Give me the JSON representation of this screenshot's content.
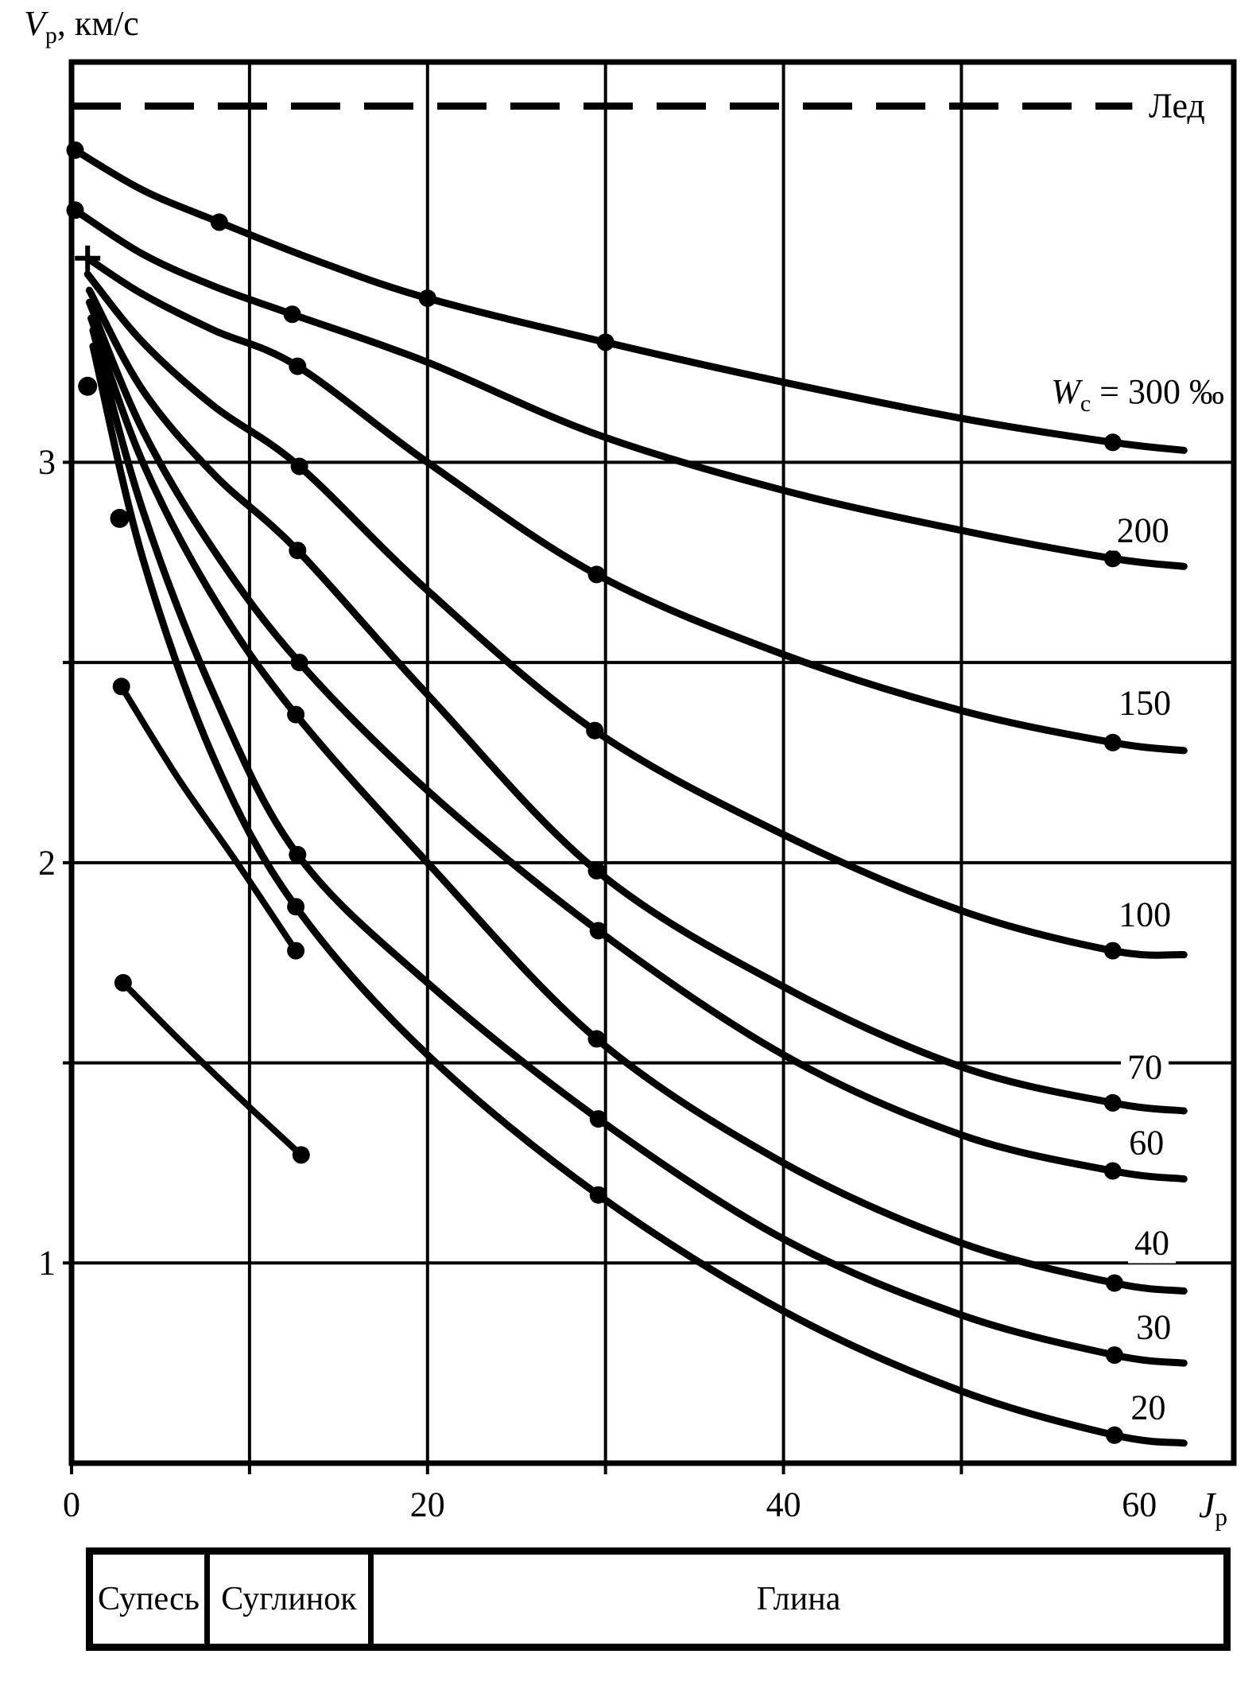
{
  "figure": {
    "background": "#ffffff",
    "ink": "#000000"
  },
  "axes": {
    "y_title": {
      "sym": "V",
      "sub": "p",
      "rest": ", км/с"
    },
    "x_title": {
      "sym": "J",
      "sub": "p"
    }
  },
  "soil_table": {
    "cells": [
      "Супесь",
      "Суглинок",
      "Глина"
    ]
  },
  "chart_data": {
    "type": "line",
    "title": "",
    "xlabel": "Jp",
    "ylabel": "Vp, км/с",
    "xlim": [
      0,
      65.3
    ],
    "ylim": [
      0.5,
      4.0
    ],
    "grid": true,
    "x_gridlines": [
      0,
      10,
      20,
      30,
      40,
      50
    ],
    "y_gridlines": [
      1,
      1.5,
      2,
      2.5,
      3
    ],
    "x_ticks": [
      {
        "value": 0,
        "label": "0"
      },
      {
        "value": 20,
        "label": "20"
      },
      {
        "value": 40,
        "label": "40"
      },
      {
        "value": 60,
        "label": "60"
      }
    ],
    "y_ticks": [
      {
        "value": 3,
        "label": "3"
      },
      {
        "value": 2,
        "label": "2"
      },
      {
        "value": 1,
        "label": "1"
      }
    ],
    "ice_line": {
      "vp": 3.89,
      "jp_start": 0,
      "jp_end": 59.6,
      "label": "Лед",
      "label_pos": [
        62.1,
        3.89
      ]
    },
    "series": [
      {
        "name": "Wc=300",
        "label": "300",
        "label_prefix": {
          "sym": "W",
          "sub": "c",
          "eq": " = "
        },
        "label_suffix": " ‰",
        "label_pos": [
          59.9,
          3.17
        ],
        "points": [
          [
            0.2,
            3.78
          ],
          [
            4,
            3.68
          ],
          [
            8.3,
            3.6
          ],
          [
            14,
            3.5
          ],
          [
            20,
            3.41
          ],
          [
            30,
            3.3
          ],
          [
            40,
            3.2
          ],
          [
            50,
            3.11
          ],
          [
            58.5,
            3.05
          ],
          [
            62.5,
            3.03
          ]
        ],
        "markers": [
          [
            0.2,
            3.78
          ],
          [
            8.3,
            3.6
          ],
          [
            20,
            3.41
          ],
          [
            30,
            3.3
          ],
          [
            58.5,
            3.05
          ]
        ]
      },
      {
        "name": "Wc=200",
        "label": "200",
        "label_pos": [
          60.2,
          2.83
        ],
        "points": [
          [
            0.2,
            3.63
          ],
          [
            4,
            3.52
          ],
          [
            8,
            3.44
          ],
          [
            12.4,
            3.37
          ],
          [
            20,
            3.25
          ],
          [
            29.5,
            3.07
          ],
          [
            40,
            2.93
          ],
          [
            50,
            2.83
          ],
          [
            58.5,
            2.76
          ],
          [
            62.5,
            2.74
          ]
        ],
        "markers": [
          [
            0.2,
            3.63
          ],
          [
            12.4,
            3.37
          ],
          [
            58.5,
            2.76
          ]
        ]
      },
      {
        "name": "Wc=150",
        "label": "150",
        "label_pos": [
          60.3,
          2.4
        ],
        "points": [
          [
            0.9,
            3.51
          ],
          [
            4,
            3.42
          ],
          [
            8,
            3.33
          ],
          [
            12.7,
            3.24
          ],
          [
            20,
            3.0
          ],
          [
            29.5,
            2.72
          ],
          [
            40,
            2.52
          ],
          [
            50,
            2.38
          ],
          [
            58.5,
            2.3
          ],
          [
            62.5,
            2.28
          ]
        ],
        "markers": [
          [
            12.7,
            3.24
          ],
          [
            29.5,
            2.72
          ],
          [
            58.5,
            2.3
          ]
        ]
      },
      {
        "name": "Wc=100",
        "label": "100",
        "label_pos": [
          60.3,
          1.87
        ],
        "points": [
          [
            0.9,
            3.47
          ],
          [
            4,
            3.3
          ],
          [
            8,
            3.14
          ],
          [
            12.8,
            2.99
          ],
          [
            20,
            2.68
          ],
          [
            29.4,
            2.33
          ],
          [
            40,
            2.07
          ],
          [
            50,
            1.88
          ],
          [
            58.5,
            1.78
          ],
          [
            62.5,
            1.77
          ]
        ],
        "markers": [
          [
            12.8,
            2.99
          ],
          [
            29.4,
            2.33
          ],
          [
            58.5,
            1.78
          ]
        ]
      },
      {
        "name": "Wc=70",
        "label": "70",
        "label_pos": [
          60.3,
          1.49
        ],
        "points": [
          [
            1.0,
            3.43
          ],
          [
            4,
            3.18
          ],
          [
            8,
            2.97
          ],
          [
            12.7,
            2.78
          ],
          [
            20,
            2.42
          ],
          [
            29.5,
            1.98
          ],
          [
            40,
            1.69
          ],
          [
            50,
            1.49
          ],
          [
            58.5,
            1.4
          ],
          [
            62.5,
            1.38
          ]
        ],
        "markers": [
          [
            12.7,
            2.78
          ],
          [
            29.5,
            1.98
          ],
          [
            58.5,
            1.4
          ]
        ]
      },
      {
        "name": "Wc=60",
        "label": "60",
        "label_pos": [
          60.4,
          1.3
        ],
        "points": [
          [
            1.0,
            3.4
          ],
          [
            4,
            3.08
          ],
          [
            8,
            2.78
          ],
          [
            12.8,
            2.5
          ],
          [
            20,
            2.18
          ],
          [
            29.6,
            1.83
          ],
          [
            40,
            1.52
          ],
          [
            50,
            1.32
          ],
          [
            58.5,
            1.23
          ],
          [
            62.5,
            1.21
          ]
        ],
        "markers": [
          [
            12.8,
            2.5
          ],
          [
            29.6,
            1.83
          ],
          [
            58.5,
            1.23
          ]
        ]
      },
      {
        "name": "Wc=40",
        "label": "40",
        "label_pos": [
          60.7,
          1.05
        ],
        "points": [
          [
            1.1,
            3.36
          ],
          [
            4,
            3.0
          ],
          [
            8,
            2.66
          ],
          [
            12.6,
            2.37
          ],
          [
            20,
            2.0
          ],
          [
            29.5,
            1.56
          ],
          [
            40,
            1.25
          ],
          [
            50,
            1.05
          ],
          [
            58.6,
            0.95
          ],
          [
            62.5,
            0.93
          ]
        ],
        "markers": [
          [
            12.6,
            2.37
          ],
          [
            29.5,
            1.56
          ],
          [
            58.6,
            0.95
          ]
        ]
      },
      {
        "name": "Wc=30",
        "label": "30",
        "label_pos": [
          60.8,
          0.84
        ],
        "points": [
          [
            1.2,
            3.33
          ],
          [
            4,
            2.88
          ],
          [
            8,
            2.42
          ],
          [
            12.7,
            2.02
          ],
          [
            20,
            1.7
          ],
          [
            29.6,
            1.36
          ],
          [
            40,
            1.06
          ],
          [
            50,
            0.87
          ],
          [
            58.6,
            0.77
          ],
          [
            62.5,
            0.75
          ]
        ],
        "markers": [
          [
            12.7,
            2.02
          ],
          [
            29.6,
            1.36
          ],
          [
            58.6,
            0.77
          ]
        ]
      },
      {
        "name": "Wc=20",
        "label": "20",
        "label_pos": [
          60.5,
          0.64
        ],
        "points": [
          [
            1.2,
            3.29
          ],
          [
            4,
            2.76
          ],
          [
            8,
            2.26
          ],
          [
            12.6,
            1.89
          ],
          [
            20,
            1.52
          ],
          [
            29.6,
            1.17
          ],
          [
            40,
            0.88
          ],
          [
            50,
            0.68
          ],
          [
            58.6,
            0.57
          ],
          [
            62.5,
            0.55
          ]
        ],
        "markers": [
          [
            12.6,
            1.89
          ],
          [
            29.6,
            1.17
          ],
          [
            58.6,
            0.57
          ]
        ]
      }
    ],
    "extra_segments": [
      {
        "name": "short-segment-upper",
        "points": [
          [
            2.8,
            2.44
          ],
          [
            6,
            2.21
          ],
          [
            9.3,
            2.0
          ],
          [
            12.6,
            1.78
          ]
        ],
        "markers": [
          [
            2.8,
            2.44
          ],
          [
            12.6,
            1.78
          ]
        ]
      },
      {
        "name": "short-segment-lower",
        "points": [
          [
            2.9,
            1.7
          ],
          [
            6,
            1.56
          ],
          [
            9.5,
            1.41
          ],
          [
            12.9,
            1.27
          ]
        ],
        "markers": [
          [
            2.9,
            1.7
          ],
          [
            12.9,
            1.27
          ]
        ]
      }
    ],
    "isolated_points": [
      [
        0.9,
        3.19
      ],
      [
        2.7,
        2.86
      ]
    ],
    "cross_markers": [
      [
        0.9,
        3.51
      ]
    ]
  }
}
